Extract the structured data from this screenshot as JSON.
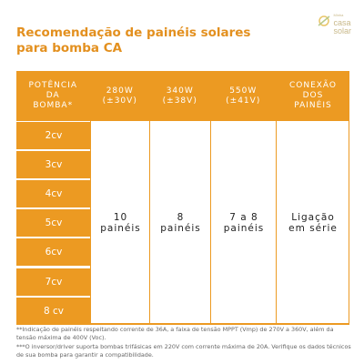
{
  "header": {
    "title_lines": [
      "Recomendação de painéis solares",
      "para bomba CA"
    ],
    "logo": [
      "Minha",
      "casa",
      "solar"
    ]
  },
  "table": {
    "columns": [
      [
        "POTÊNCIA",
        "DA",
        "BOMBA*"
      ],
      [
        "280W",
        "(±30V)"
      ],
      [
        "340W",
        "(±38V)"
      ],
      [
        "550W",
        "(±41V)"
      ],
      [
        "CONEXÃO",
        "DOS",
        "PAINÉIS"
      ]
    ],
    "rows": [
      "2cv",
      "3cv",
      "4cv",
      "5cv",
      "6cv",
      "7cv",
      "8 cv"
    ],
    "merged": [
      [
        "10",
        "painéis"
      ],
      [
        "8",
        "painéis"
      ],
      [
        "7 a 8",
        "painéis"
      ],
      [
        "Ligação",
        "em série"
      ]
    ]
  },
  "footnotes": [
    "**Indicação de painéis respeitando corrente de 36A, a faixa de tensão MPPT (Vmp) de 270V a 360V, além da tensão máxima de 400V (Voc).",
    "***O inversor/driver suporta bombas trifásicas em 220V com corrente máxima de 20A. Verifique os dados técnicos de sua bomba para garantir a compatibilidade."
  ]
}
